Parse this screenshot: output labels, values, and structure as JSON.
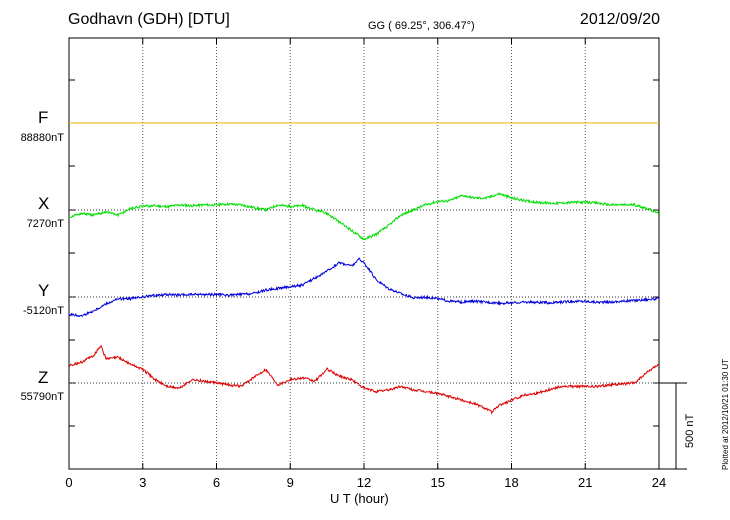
{
  "header": {
    "station": "Godhavn (GDH)  [DTU]",
    "coords": "GG ( 69.25°, 306.47°)",
    "date": "2012/09/20"
  },
  "side_note": "Plotted at 2012/10/21 01:30 UT",
  "chart_data": {
    "type": "line",
    "title": "Godhavn (GDH)  [DTU]",
    "xlabel": "U T (hour)",
    "xlim": [
      0,
      24
    ],
    "xticks": [
      "0",
      "3",
      "6",
      "9",
      "12",
      "15",
      "18",
      "21",
      "24"
    ],
    "scale_bar": "500 nT",
    "grid": "vertical dotted at 3-hour intervals; dotted baseline per channel",
    "colors": {
      "F": "#f0b000",
      "X": "#00dd00",
      "Y": "#0000dd",
      "Z": "#dd0000"
    },
    "series": [
      {
        "name": "F",
        "baseline_label": "88880nT",
        "unit": "nT",
        "x": [
          0,
          24
        ],
        "y": [
          0,
          0
        ]
      },
      {
        "name": "X",
        "baseline_label": "7270nT",
        "unit": "nT",
        "x": [
          0,
          0.5,
          1,
          1.5,
          2,
          2.5,
          3,
          3.5,
          4,
          4.5,
          5,
          5.5,
          6,
          6.5,
          7,
          7.5,
          8,
          8.5,
          9,
          9.5,
          10,
          10.5,
          11,
          11.5,
          11.8,
          12,
          12.5,
          13,
          13.5,
          14,
          14.5,
          15,
          15.5,
          16,
          16.5,
          17,
          17.5,
          18,
          18.5,
          19,
          19.5,
          20,
          20.5,
          21,
          21.5,
          22,
          22.5,
          23,
          23.5,
          24
        ],
        "y": [
          -40,
          -20,
          -30,
          -10,
          -30,
          10,
          20,
          25,
          20,
          30,
          25,
          30,
          30,
          35,
          30,
          15,
          0,
          30,
          20,
          25,
          0,
          -20,
          -70,
          -120,
          -150,
          -170,
          -140,
          -90,
          -30,
          0,
          30,
          50,
          55,
          85,
          70,
          70,
          95,
          70,
          55,
          45,
          40,
          40,
          45,
          45,
          40,
          30,
          30,
          30,
          10,
          -20
        ]
      },
      {
        "name": "Y",
        "baseline_label": "-5120nT",
        "unit": "nT",
        "x": [
          0,
          0.5,
          1,
          1.5,
          2,
          2.5,
          3,
          3.5,
          4,
          4.5,
          5,
          5.5,
          6,
          6.5,
          7,
          7.5,
          8,
          8.5,
          9,
          9.5,
          10,
          10.5,
          11,
          11.5,
          11.8,
          12,
          12.5,
          13,
          13.5,
          14,
          14.5,
          15,
          15.5,
          16,
          16.5,
          17,
          17.5,
          18,
          18.5,
          19,
          19.5,
          20,
          20.5,
          21,
          21.5,
          22,
          22.5,
          23,
          23.5,
          24
        ],
        "y": [
          -100,
          -110,
          -80,
          -40,
          -10,
          -10,
          0,
          10,
          15,
          10,
          15,
          15,
          15,
          10,
          15,
          20,
          40,
          50,
          60,
          70,
          110,
          150,
          200,
          180,
          220,
          200,
          100,
          50,
          20,
          -5,
          0,
          -10,
          -25,
          -30,
          -25,
          -30,
          -35,
          -35,
          -30,
          -30,
          -35,
          -30,
          -25,
          -25,
          -30,
          -30,
          -25,
          -20,
          -15,
          -10
        ]
      },
      {
        "name": "Z",
        "baseline_label": "55790nT",
        "unit": "nT",
        "x": [
          0,
          0.5,
          1,
          1.3,
          1.5,
          2,
          2.5,
          3,
          3.5,
          4,
          4.5,
          5,
          5.5,
          6,
          6.5,
          7,
          7.5,
          8,
          8.5,
          9,
          9.5,
          10,
          10.5,
          11,
          11.5,
          12,
          12.5,
          13,
          13.5,
          14,
          14.5,
          15,
          15.5,
          16,
          16.5,
          17,
          17.2,
          17.5,
          18,
          18.5,
          19,
          19.5,
          20,
          20.5,
          21,
          21.5,
          22,
          22.5,
          23,
          23.5,
          24
        ],
        "y": [
          100,
          120,
          160,
          220,
          140,
          150,
          110,
          80,
          20,
          -20,
          -30,
          20,
          10,
          0,
          -10,
          -20,
          30,
          80,
          -10,
          20,
          30,
          10,
          80,
          40,
          20,
          -30,
          -50,
          -40,
          -20,
          -40,
          -50,
          -60,
          -80,
          -100,
          -120,
          -150,
          -170,
          -130,
          -100,
          -70,
          -60,
          -40,
          -20,
          -20,
          -20,
          -20,
          -10,
          -5,
          0,
          60,
          110
        ]
      }
    ]
  }
}
